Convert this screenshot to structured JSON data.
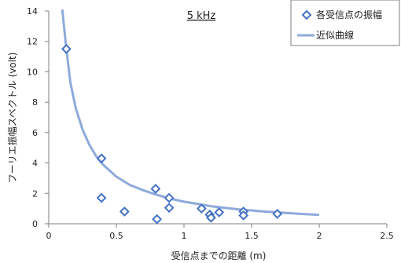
{
  "chart_data": {
    "type": "scatter",
    "title": "",
    "annotation": "5 kHz",
    "xlabel": "受信点までの距離 (m)",
    "ylabel": "フーリエ振幅スペクトル (volt)",
    "xlim": [
      0,
      2.5
    ],
    "ylim": [
      0,
      14
    ],
    "xticks": [
      "0",
      "0.5",
      "1",
      "1.5",
      "2",
      "2.5"
    ],
    "yticks": [
      "0",
      "2",
      "4",
      "6",
      "8",
      "10",
      "12",
      "14"
    ],
    "grid": false,
    "legend_position": "top-right",
    "colors": {
      "marker": "#4472C4",
      "curve": "#8EAADB",
      "axis": "#7f7f7f"
    },
    "series": [
      {
        "name": "各受信点の振幅",
        "kind": "scatter",
        "marker": "diamond",
        "points": [
          {
            "x": 0.13,
            "y": 11.5
          },
          {
            "x": 0.39,
            "y": 4.3
          },
          {
            "x": 0.39,
            "y": 1.7
          },
          {
            "x": 0.56,
            "y": 0.8
          },
          {
            "x": 0.79,
            "y": 2.3
          },
          {
            "x": 0.8,
            "y": 0.3
          },
          {
            "x": 0.89,
            "y": 1.7
          },
          {
            "x": 0.89,
            "y": 1.05
          },
          {
            "x": 1.13,
            "y": 1.0
          },
          {
            "x": 1.19,
            "y": 0.6
          },
          {
            "x": 1.2,
            "y": 0.4
          },
          {
            "x": 1.26,
            "y": 0.75
          },
          {
            "x": 1.44,
            "y": 0.8
          },
          {
            "x": 1.44,
            "y": 0.55
          },
          {
            "x": 1.69,
            "y": 0.65
          }
        ]
      },
      {
        "name": "近似曲線",
        "kind": "line",
        "points": [
          {
            "x": 0.1,
            "y": 14.2
          },
          {
            "x": 0.13,
            "y": 11.5
          },
          {
            "x": 0.16,
            "y": 9.3
          },
          {
            "x": 0.2,
            "y": 7.6
          },
          {
            "x": 0.25,
            "y": 6.2
          },
          {
            "x": 0.3,
            "y": 5.2
          },
          {
            "x": 0.35,
            "y": 4.45
          },
          {
            "x": 0.4,
            "y": 3.9
          },
          {
            "x": 0.5,
            "y": 3.1
          },
          {
            "x": 0.6,
            "y": 2.55
          },
          {
            "x": 0.7,
            "y": 2.2
          },
          {
            "x": 0.8,
            "y": 1.9
          },
          {
            "x": 0.9,
            "y": 1.65
          },
          {
            "x": 1.0,
            "y": 1.45
          },
          {
            "x": 1.2,
            "y": 1.15
          },
          {
            "x": 1.4,
            "y": 0.95
          },
          {
            "x": 1.6,
            "y": 0.8
          },
          {
            "x": 1.8,
            "y": 0.68
          },
          {
            "x": 2.0,
            "y": 0.58
          }
        ]
      }
    ]
  }
}
